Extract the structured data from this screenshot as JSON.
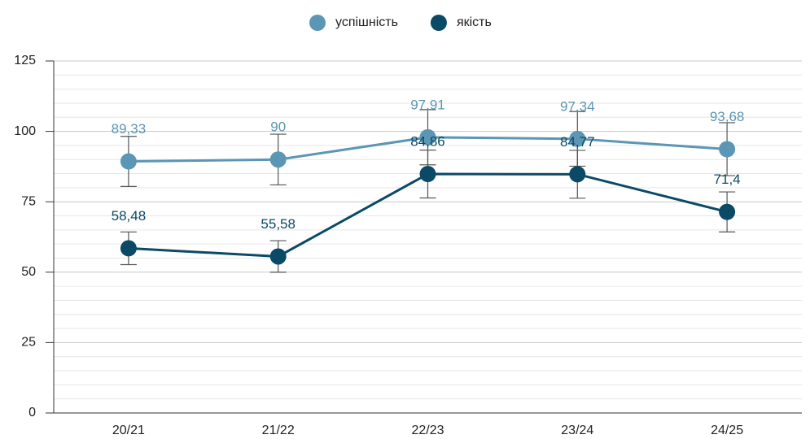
{
  "chart_data": {
    "type": "line",
    "categories": [
      "20/21",
      "21/22",
      "22/23",
      "23/24",
      "24/25"
    ],
    "series": [
      {
        "name": "успішність",
        "color": "#5b96b5",
        "values": [
          89.33,
          90,
          97.91,
          97.34,
          93.68
        ],
        "value_labels": [
          "89,33",
          "90",
          "97,91",
          "97,34",
          "93,68"
        ],
        "errors": [
          8.9,
          9,
          9.8,
          9.7,
          9.4
        ]
      },
      {
        "name": "якість",
        "color": "#0b4a66",
        "values": [
          58.48,
          55.58,
          84.86,
          84.77,
          71.4
        ],
        "value_labels": [
          "58,48",
          "55,58",
          "84,86",
          "84,77",
          "71,4"
        ],
        "errors": [
          5.8,
          5.6,
          8.5,
          8.5,
          7.1
        ]
      }
    ],
    "ylim": [
      0,
      125
    ],
    "yticks": [
      0,
      25,
      50,
      75,
      100,
      125
    ],
    "minor_yticks": [
      5,
      10,
      15,
      20,
      30,
      35,
      40,
      45,
      55,
      60,
      65,
      70,
      80,
      85,
      90,
      95,
      105,
      110,
      115,
      120
    ],
    "grid": true,
    "legend": "top"
  }
}
